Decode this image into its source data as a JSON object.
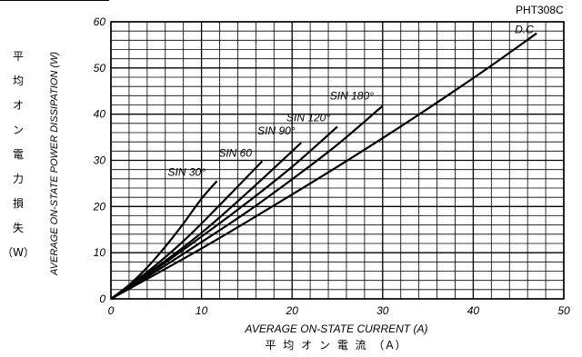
{
  "chart_data": {
    "type": "line",
    "title": "",
    "code": "PHT308C",
    "xlabel": "AVERAGE ON-STATE CURRENT (A)",
    "xlabel_jp": "平 均 オ ン 電 流 （A）",
    "ylabel": "AVERAGE ON-STATE POWER DISSIPATION (W)",
    "ylabel_jp": [
      "平",
      "均",
      "オ",
      "ン",
      "電",
      "力",
      "損",
      "失",
      "（W）"
    ],
    "xlim": [
      0,
      50
    ],
    "ylim": [
      0,
      60
    ],
    "xticks": [
      0,
      10,
      20,
      30,
      40,
      50
    ],
    "yticks": [
      0,
      10,
      20,
      30,
      40,
      50,
      60
    ],
    "grid": true,
    "series": [
      {
        "name": "SIN 30°",
        "x": [
          0,
          2,
          4,
          6,
          8,
          10,
          11.7
        ],
        "y": [
          0,
          3.0,
          6.8,
          11.3,
          16.3,
          21.7,
          25.5
        ]
      },
      {
        "name": "SIN 60",
        "x": [
          0,
          4,
          8,
          12,
          16.7
        ],
        "y": [
          0,
          5.8,
          12.5,
          20.3,
          29.8
        ]
      },
      {
        "name": "SIN 90°",
        "x": [
          0,
          5,
          10,
          15,
          21
        ],
        "y": [
          0,
          6.8,
          14.3,
          22.9,
          33.8
        ]
      },
      {
        "name": "SIN 120°",
        "x": [
          0,
          5,
          10,
          15,
          20,
          25
        ],
        "y": [
          0,
          6.5,
          13.5,
          20.8,
          28.6,
          37.3
        ]
      },
      {
        "name": "SIN 180°",
        "x": [
          0,
          5,
          10,
          15,
          20,
          25,
          30
        ],
        "y": [
          0,
          6.0,
          12.3,
          18.8,
          25.9,
          33.4,
          41.8
        ]
      },
      {
        "name": "D.C",
        "x": [
          0,
          10,
          20,
          30,
          40,
          47
        ],
        "y": [
          0,
          10.9,
          22.6,
          34.8,
          47.8,
          57.5
        ]
      }
    ]
  }
}
